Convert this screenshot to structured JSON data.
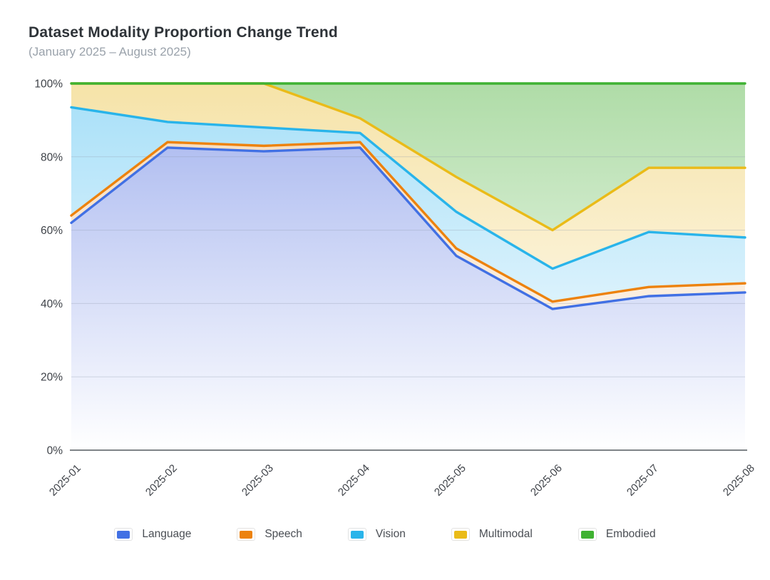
{
  "header": {
    "title": "Dataset Modality Proportion Change Trend",
    "subtitle": "(January 2025 – August 2025)"
  },
  "chart_data": {
    "type": "area",
    "stacked": true,
    "title": "Dataset Modality Proportion Change Trend",
    "subtitle": "(January 2025 – August 2025)",
    "x": [
      "2025-01",
      "2025-02",
      "2025-03",
      "2025-04",
      "2025-05",
      "2025-06",
      "2025-07",
      "2025-08"
    ],
    "series": [
      {
        "name": "Language",
        "color": "#4170E4",
        "fill_top": "#a2b2ee",
        "values": [
          62,
          82.5,
          81.5,
          82.5,
          53,
          38.5,
          42,
          43
        ]
      },
      {
        "name": "Speech",
        "color": "#ED820D",
        "fill_top": "#f6d8b4",
        "values": [
          2,
          1.5,
          1.5,
          1.5,
          2,
          2,
          2.5,
          2.5
        ]
      },
      {
        "name": "Vision",
        "color": "#29B4EA",
        "fill_top": "#a6dff8",
        "values": [
          29.5,
          5.5,
          5,
          2.5,
          10,
          9,
          15,
          12.5
        ]
      },
      {
        "name": "Multimodal",
        "color": "#EABB18",
        "fill_top": "#f6e3a8",
        "values": [
          6.5,
          10.5,
          12,
          4,
          9.5,
          10.5,
          17.5,
          19
        ]
      },
      {
        "name": "Embodied",
        "color": "#3FB232",
        "fill_top": "#afdca7",
        "values": [
          0,
          0,
          0,
          9.5,
          25.5,
          40,
          23,
          23
        ]
      }
    ],
    "cumulative_lines": {
      "Language": [
        62,
        82.5,
        81.5,
        82.5,
        53,
        38.5,
        42,
        43
      ],
      "Speech": [
        64,
        84,
        83,
        84,
        55,
        40.5,
        44.5,
        45.5
      ],
      "Vision": [
        93.5,
        89.5,
        88,
        86.5,
        65,
        49.5,
        59.5,
        58
      ],
      "Multimodal": [
        100,
        100,
        100,
        90.5,
        74.5,
        60,
        77,
        77
      ],
      "Embodied": [
        100,
        100,
        100,
        100,
        100,
        100,
        100,
        100
      ]
    },
    "xlabel": "",
    "ylabel": "",
    "ylim": [
      0,
      100
    ],
    "y_tick_values": [
      0,
      20,
      40,
      60,
      80,
      100
    ],
    "y_tick_labels": [
      "0%",
      "20%",
      "40%",
      "60%",
      "80%",
      "100%"
    ],
    "grid": true,
    "legend_position": "bottom",
    "note": "100% stacked area chart; each month's modality proportions sum to 100%"
  },
  "colors": {
    "axis_line": "#7e8387",
    "grid_line": "#8c96aa",
    "tick_text": "#3e4248",
    "title_text": "#2e3338",
    "subtitle_text": "#9aa2ab"
  }
}
